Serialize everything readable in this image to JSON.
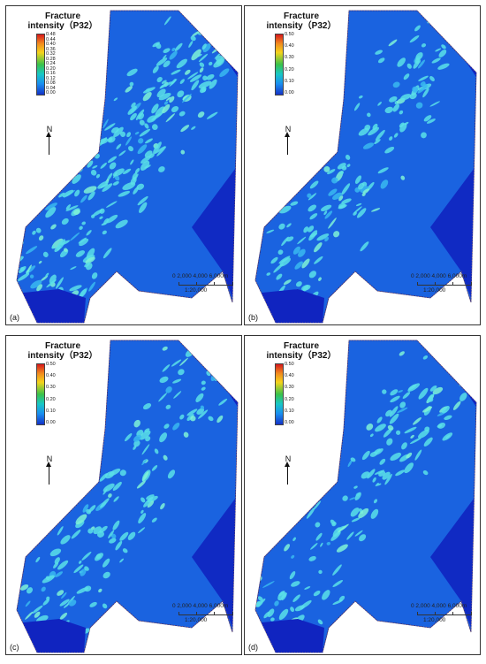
{
  "panels": [
    {
      "id": "a",
      "label": "(a)",
      "legend": {
        "title_line1": "Fracture",
        "title_line2": "intensity（P32）",
        "ticks": [
          "0.48",
          "0.44",
          "0.40",
          "0.36",
          "0.32",
          "0.28",
          "0.24",
          "0.20",
          "0.16",
          "0.12",
          "0.08",
          "0.04",
          "0.00"
        ]
      }
    },
    {
      "id": "b",
      "label": "(b)",
      "legend": {
        "title_line1": "Fracture",
        "title_line2": "intensity（P32）",
        "ticks": [
          "0.50",
          "0.40",
          "0.30",
          "0.20",
          "0.10",
          "0.00"
        ]
      }
    },
    {
      "id": "c",
      "label": "(c)",
      "legend": {
        "title_line1": "Fracture",
        "title_line2": "intensity（P32）",
        "ticks": [
          "0.50",
          "0.40",
          "0.30",
          "0.20",
          "0.10",
          "0.00"
        ]
      }
    },
    {
      "id": "d",
      "label": "(d)",
      "legend": {
        "title_line1": "Fracture",
        "title_line2": "intensity（P32）",
        "ticks": [
          "0.50",
          "0.40",
          "0.30",
          "0.20",
          "0.10",
          "0.00"
        ]
      }
    }
  ],
  "north_label": "N",
  "scale": {
    "numbers": "0   2,000 4,000 6,000m",
    "ratio": "1:20,000"
  },
  "colors": {
    "background_blue": "#1a63e0",
    "dark_blue": "#1024c0",
    "bright": "#5be0e8",
    "border": "#333333"
  },
  "icons": {
    "north": "north-arrow-icon"
  }
}
